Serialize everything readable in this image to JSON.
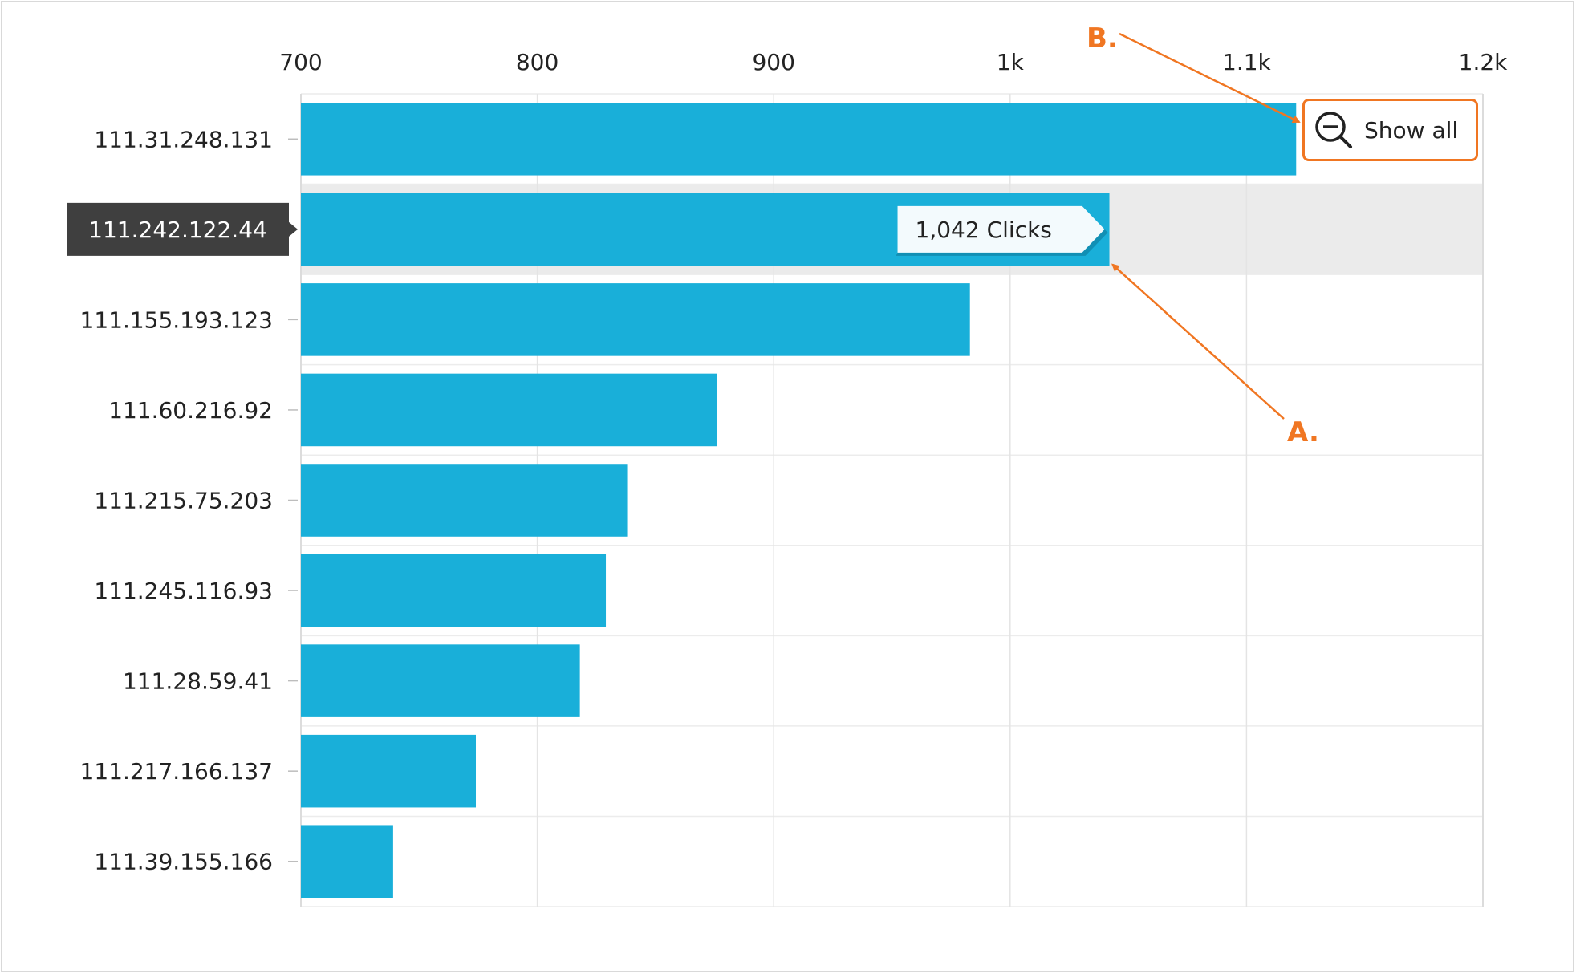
{
  "chart_data": {
    "type": "bar",
    "orientation": "horizontal",
    "categories": [
      "111.31.248.131",
      "111.242.122.44",
      "111.155.193.123",
      "111.60.216.92",
      "111.215.75.203",
      "111.245.116.93",
      "111.28.59.41",
      "111.217.166.137",
      "111.39.155.166"
    ],
    "values": [
      1121,
      1042,
      983,
      876,
      838,
      829,
      818,
      774,
      739
    ],
    "xlim": [
      700,
      1200
    ],
    "x_ticks": [
      700,
      800,
      900,
      1000,
      1100,
      1200
    ],
    "x_tick_labels": [
      "700",
      "800",
      "900",
      "1k",
      "1.1k",
      "1.2k"
    ],
    "x_axis_position": "top",
    "grid": true,
    "bar_color": "#19afd9",
    "highlighted_index": 1,
    "tooltip": {
      "text": "1,042 Clicks"
    },
    "annotations": [
      {
        "label": "A.",
        "target": "tooltip"
      },
      {
        "label": "B.",
        "target": "show-all-button"
      }
    ],
    "annotation_color": "#f07622"
  },
  "toolbar": {
    "show_all_label": "Show all",
    "show_all_icon": "zoom-out-icon"
  }
}
